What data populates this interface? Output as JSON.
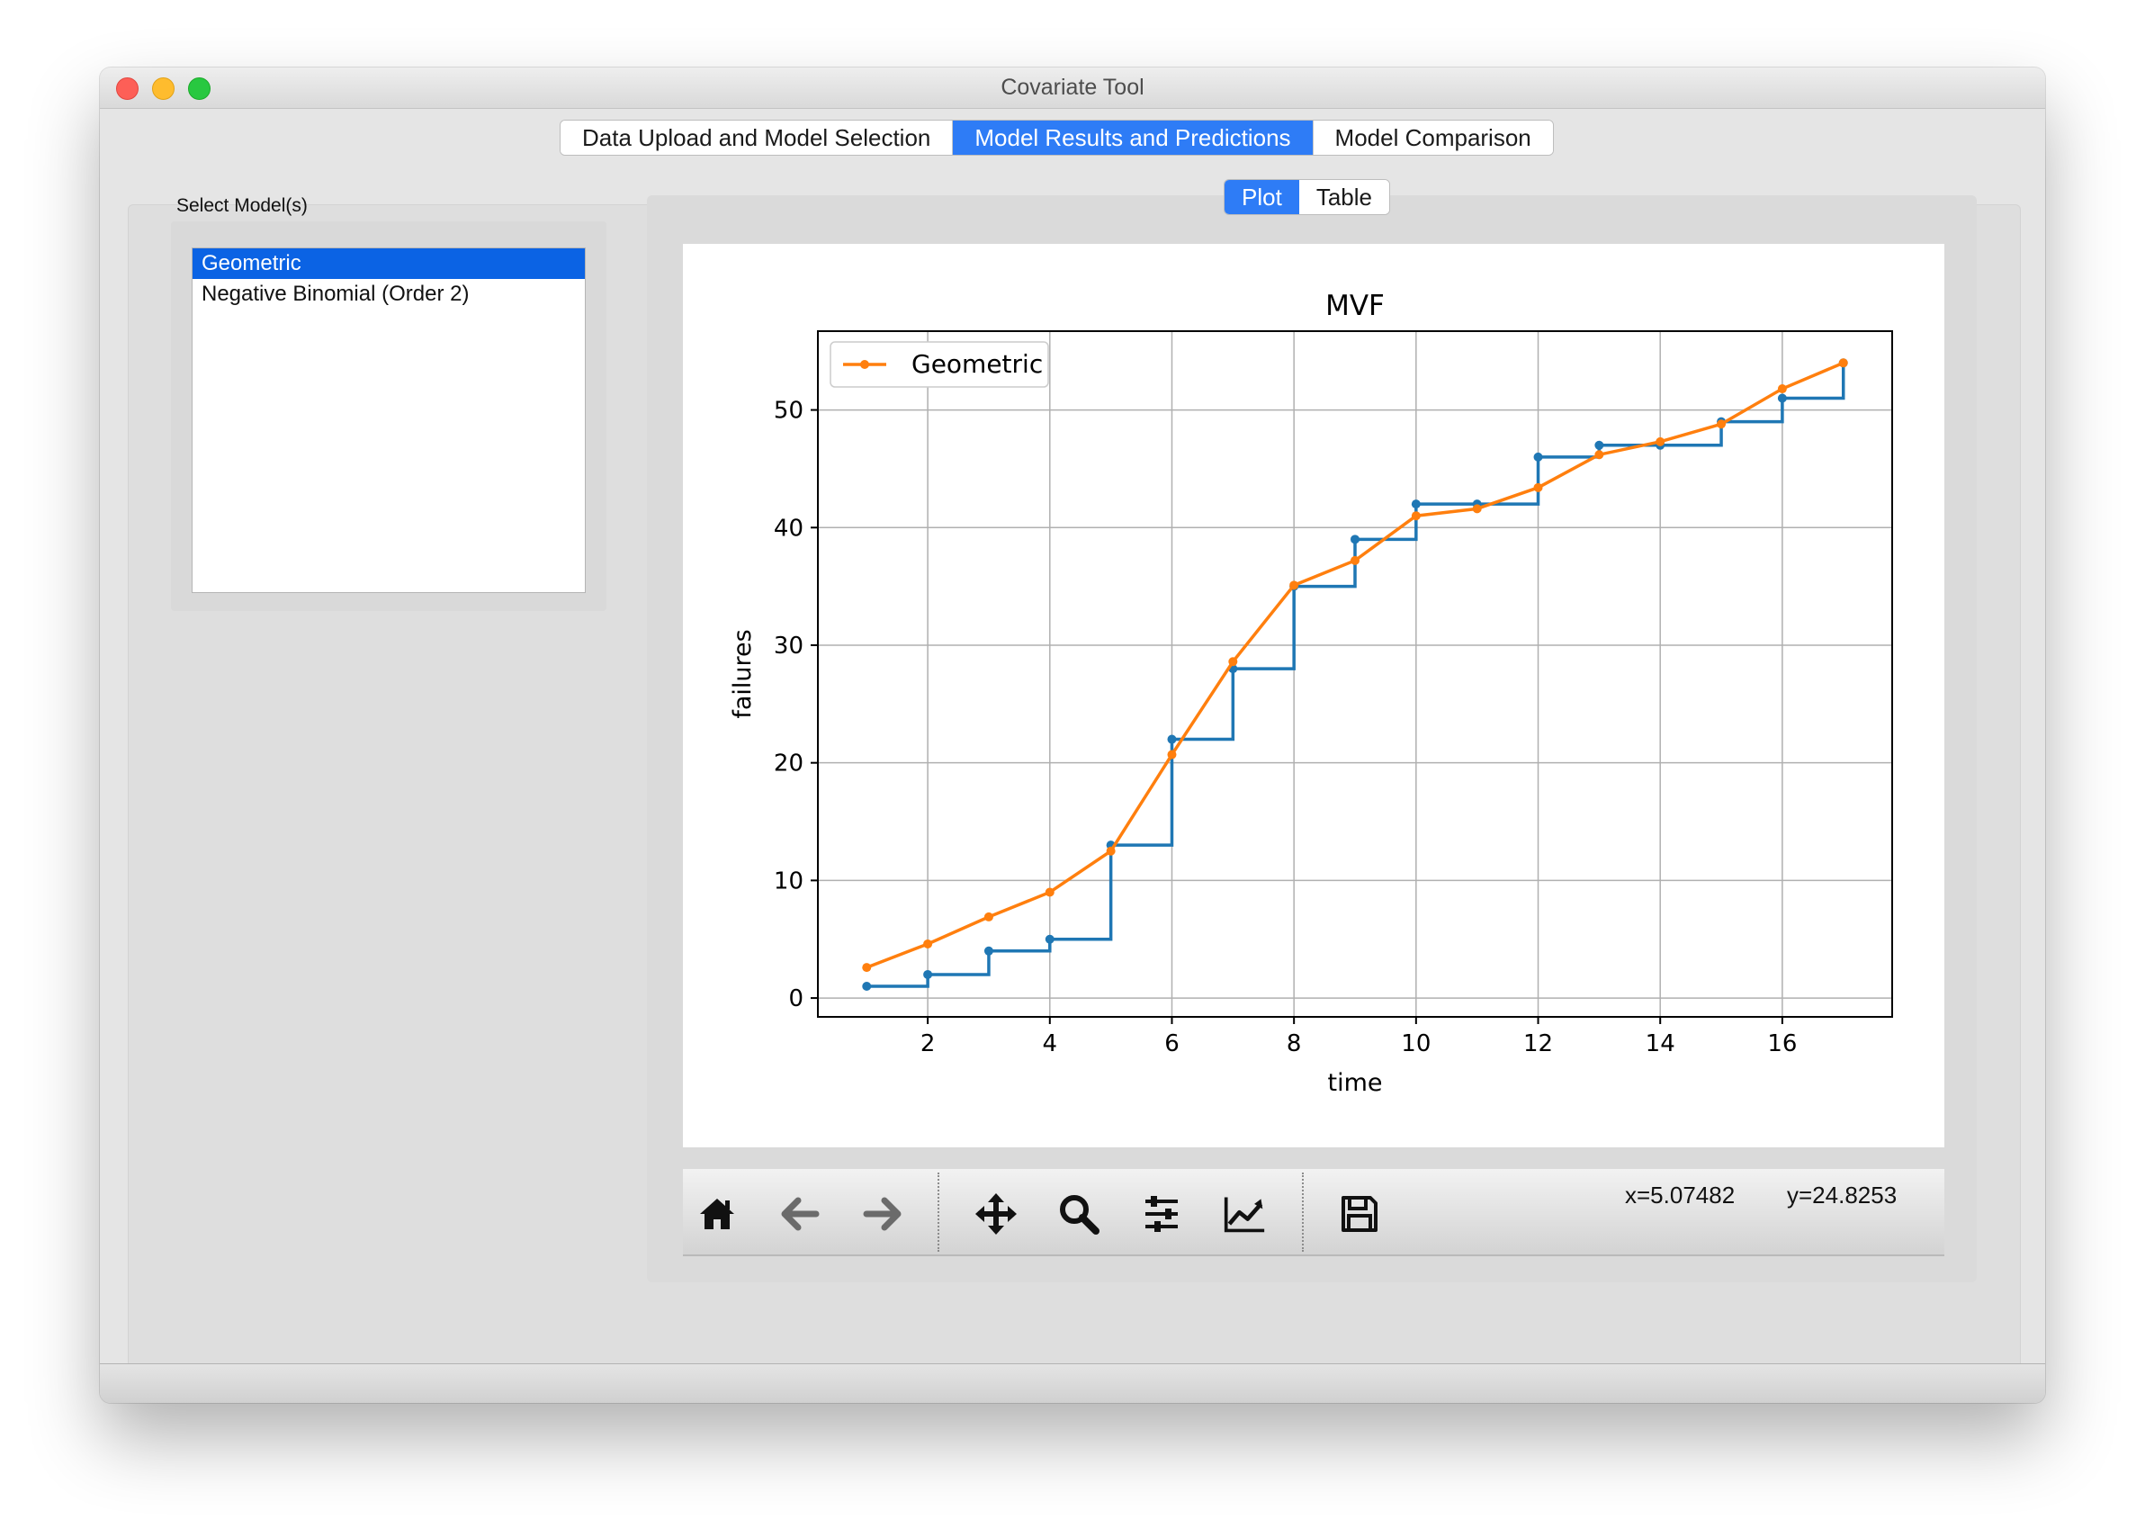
{
  "window": {
    "title": "Covariate Tool"
  },
  "tabs": [
    {
      "label": "Data Upload and Model Selection",
      "active": false
    },
    {
      "label": "Model Results and Predictions",
      "active": true
    },
    {
      "label": "Model Comparison",
      "active": false
    }
  ],
  "sidebar": {
    "label": "Select Model(s)",
    "models": [
      {
        "label": "Geometric",
        "selected": true
      },
      {
        "label": "Negative Binomial (Order 2)",
        "selected": false
      }
    ]
  },
  "subtabs": [
    {
      "label": "Plot",
      "active": true
    },
    {
      "label": "Table",
      "active": false
    }
  ],
  "toolbar": {
    "buttons": [
      {
        "icon": "home-icon"
      },
      {
        "icon": "back-arrow-icon"
      },
      {
        "icon": "forward-arrow-icon"
      },
      {
        "icon": "pan-icon"
      },
      {
        "icon": "zoom-icon"
      },
      {
        "icon": "configure-subplots-icon"
      },
      {
        "icon": "edit-axis-icon"
      },
      {
        "icon": "save-icon"
      }
    ],
    "coord_x": "x=5.07482",
    "coord_y": "y=24.8253"
  },
  "colors": {
    "accent": "#2e7cf6",
    "series_observed": "#1f77b4",
    "series_model": "#ff7f0e"
  },
  "chart_data": {
    "type": "line",
    "title": "MVF",
    "xlabel": "time",
    "ylabel": "failures",
    "xlim": [
      0.2,
      17.8
    ],
    "ylim": [
      -1.6,
      56.7
    ],
    "xticks": [
      2,
      4,
      6,
      8,
      10,
      12,
      14,
      16
    ],
    "yticks": [
      0,
      10,
      20,
      30,
      40,
      50
    ],
    "grid": true,
    "legend_position": "top-left",
    "series": [
      {
        "style": "step-post",
        "color": "#1f77b4",
        "x": [
          1,
          2,
          3,
          4,
          5,
          6,
          7,
          8,
          9,
          10,
          11,
          12,
          13,
          14,
          15,
          16,
          17
        ],
        "y": [
          1,
          2,
          4,
          5,
          13,
          22,
          28,
          35,
          39,
          42,
          42,
          46,
          47,
          47,
          49,
          51,
          54
        ]
      },
      {
        "name": "Geometric",
        "style": "line-marker",
        "color": "#ff7f0e",
        "x": [
          1,
          2,
          3,
          4,
          5,
          6,
          7,
          8,
          9,
          10,
          11,
          12,
          13,
          14,
          15,
          16,
          17
        ],
        "y": [
          2.6,
          4.6,
          6.9,
          9.0,
          12.5,
          20.7,
          28.6,
          35.1,
          37.2,
          41.0,
          41.6,
          43.4,
          46.2,
          47.3,
          48.8,
          51.8,
          54.0
        ]
      }
    ]
  }
}
